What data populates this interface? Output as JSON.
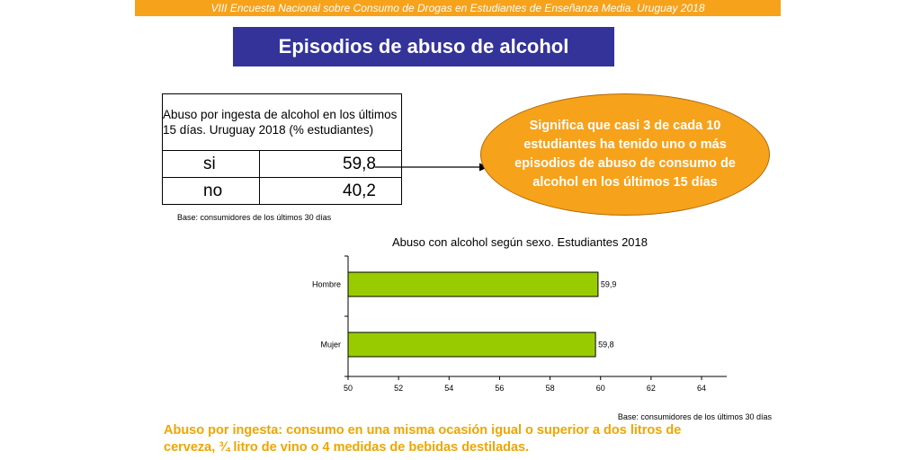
{
  "header": {
    "banner": "VIII Encuesta Nacional sobre Consumo de Drogas en Estudiantes de Enseñanza Media. Uruguay 2018",
    "title": "Episodios de abuso de alcohol"
  },
  "summary_table": {
    "header": "Abuso por ingesta de alcohol en  los últimos 15 días. Uruguay 2018 (% estudiantes)",
    "rows": [
      {
        "label": "si",
        "value": "59,8"
      },
      {
        "label": "no",
        "value": "40,2"
      }
    ],
    "base_note": "Base: consumidores de los últimos 30 días"
  },
  "callout": {
    "text": "Significa que casi 3 de cada 10 estudiantes ha  tenido uno o más episodios de  abuso  de consumo de alcohol en los últimos 15 días"
  },
  "colors": {
    "banner": "#f7a21b",
    "title_bg": "#33339a",
    "bar_fill": "#99cc00",
    "definition_text": "#f0a500"
  },
  "chart_data": {
    "type": "bar",
    "orientation": "horizontal",
    "title": "Abuso con alcohol según sexo. Estudiantes 2018",
    "categories": [
      "Hombre",
      "Mujer"
    ],
    "values": [
      59.9,
      59.8
    ],
    "value_labels": [
      "59,9",
      "59,8"
    ],
    "xlim": [
      50,
      64
    ],
    "xticks": [
      50,
      52,
      54,
      56,
      58,
      60,
      62,
      64
    ],
    "grid": false,
    "legend": "none",
    "base_note": "Base: consumidores de los últimos 30 días"
  },
  "definition": {
    "text": "Abuso por ingesta: consumo en una misma ocasión igual o superior a dos litros de cerveza, ¾ litro de vino o 4 medidas de  bebidas destiladas."
  }
}
